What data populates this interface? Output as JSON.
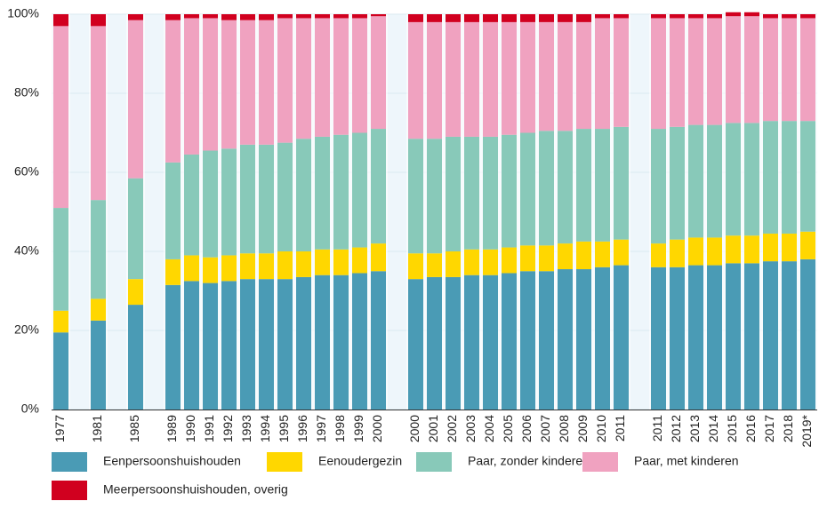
{
  "chart_data": {
    "type": "stacked_bar",
    "categories": [
      "1977",
      null,
      "1981",
      null,
      "1985",
      null,
      "1989",
      "1990",
      "1991",
      "1992",
      "1993",
      "1994",
      "1995",
      "1996",
      "1997",
      "1998",
      "1999",
      "2000",
      null,
      "2000",
      "2001",
      "2002",
      "2003",
      "2004",
      "2005",
      "2006",
      "2007",
      "2008",
      "2009",
      "2010",
      "2011",
      null,
      "2011",
      "2012",
      "2013",
      "2014",
      "2015",
      "2016",
      "2017",
      "2018",
      "2019*"
    ],
    "series": [
      {
        "name": "Eenpersoonshuishouden",
        "color": "#4a9bb5",
        "values": [
          19.5,
          null,
          22.5,
          null,
          26.5,
          null,
          31.5,
          32.5,
          32,
          32.5,
          33,
          33,
          33,
          33.5,
          34,
          34,
          34.5,
          35,
          null,
          33,
          33.5,
          33.5,
          34,
          34,
          34.5,
          35,
          35,
          35.5,
          35.5,
          36,
          36.5,
          null,
          36,
          36,
          36.5,
          36.5,
          37,
          37,
          37.5,
          37.5,
          38
        ]
      },
      {
        "name": "Eenoudergezin",
        "color": "#ffd700",
        "values": [
          5.5,
          null,
          5.5,
          null,
          6.5,
          null,
          6.5,
          6.5,
          6.5,
          6.5,
          6.5,
          6.5,
          7,
          6.5,
          6.5,
          6.5,
          6.5,
          7,
          null,
          6.5,
          6,
          6.5,
          6.5,
          6.5,
          6.5,
          6.5,
          6.5,
          6.5,
          7,
          6.5,
          6.5,
          null,
          6,
          7,
          7,
          7,
          7,
          7,
          7,
          7,
          7
        ]
      },
      {
        "name": "Paar, zonder kinderen",
        "color": "#88c9b9",
        "values": [
          26,
          null,
          25,
          null,
          25.5,
          null,
          24.5,
          25.5,
          27,
          27,
          27.5,
          27.5,
          27.5,
          28.5,
          28.5,
          29,
          29,
          29,
          null,
          29,
          29,
          29,
          28.5,
          28.5,
          28.5,
          28.5,
          29,
          28.5,
          28.5,
          28.5,
          28.5,
          null,
          29,
          28.5,
          28.5,
          28.5,
          28.5,
          28.5,
          28.5,
          28.5,
          28
        ]
      },
      {
        "name": "Paar, met kinderen",
        "color": "#f0a2c0",
        "values": [
          46,
          null,
          44,
          null,
          40,
          null,
          36,
          34.5,
          33.5,
          32.5,
          31.5,
          31.5,
          31.5,
          30.5,
          30,
          29.5,
          29,
          28.5,
          null,
          29.5,
          29.5,
          29,
          29,
          29,
          28.5,
          28,
          27.5,
          27.5,
          27,
          28,
          27.5,
          null,
          28,
          27.5,
          27,
          27,
          27,
          27,
          26,
          26,
          26
        ]
      },
      {
        "name": "Meerpersoonshuishouden, overig",
        "color": "#d1001f",
        "values": [
          3,
          null,
          3,
          null,
          1.5,
          null,
          1.5,
          1,
          1,
          1.5,
          1.5,
          1.5,
          1,
          1,
          1,
          1,
          1,
          0.5,
          null,
          2,
          2,
          2,
          2,
          2,
          2,
          2,
          2,
          2,
          2,
          1,
          1,
          null,
          1,
          1,
          1,
          1,
          1,
          1,
          1,
          1,
          1
        ]
      }
    ],
    "ylim": [
      0,
      100
    ],
    "yticks": [
      {
        "value": 0,
        "label": "0%"
      },
      {
        "value": 20,
        "label": "20%"
      },
      {
        "value": 40,
        "label": "40%"
      },
      {
        "value": 60,
        "label": "60%"
      },
      {
        "value": 80,
        "label": "80%"
      },
      {
        "value": 100,
        "label": "100%"
      }
    ],
    "grid": true
  }
}
